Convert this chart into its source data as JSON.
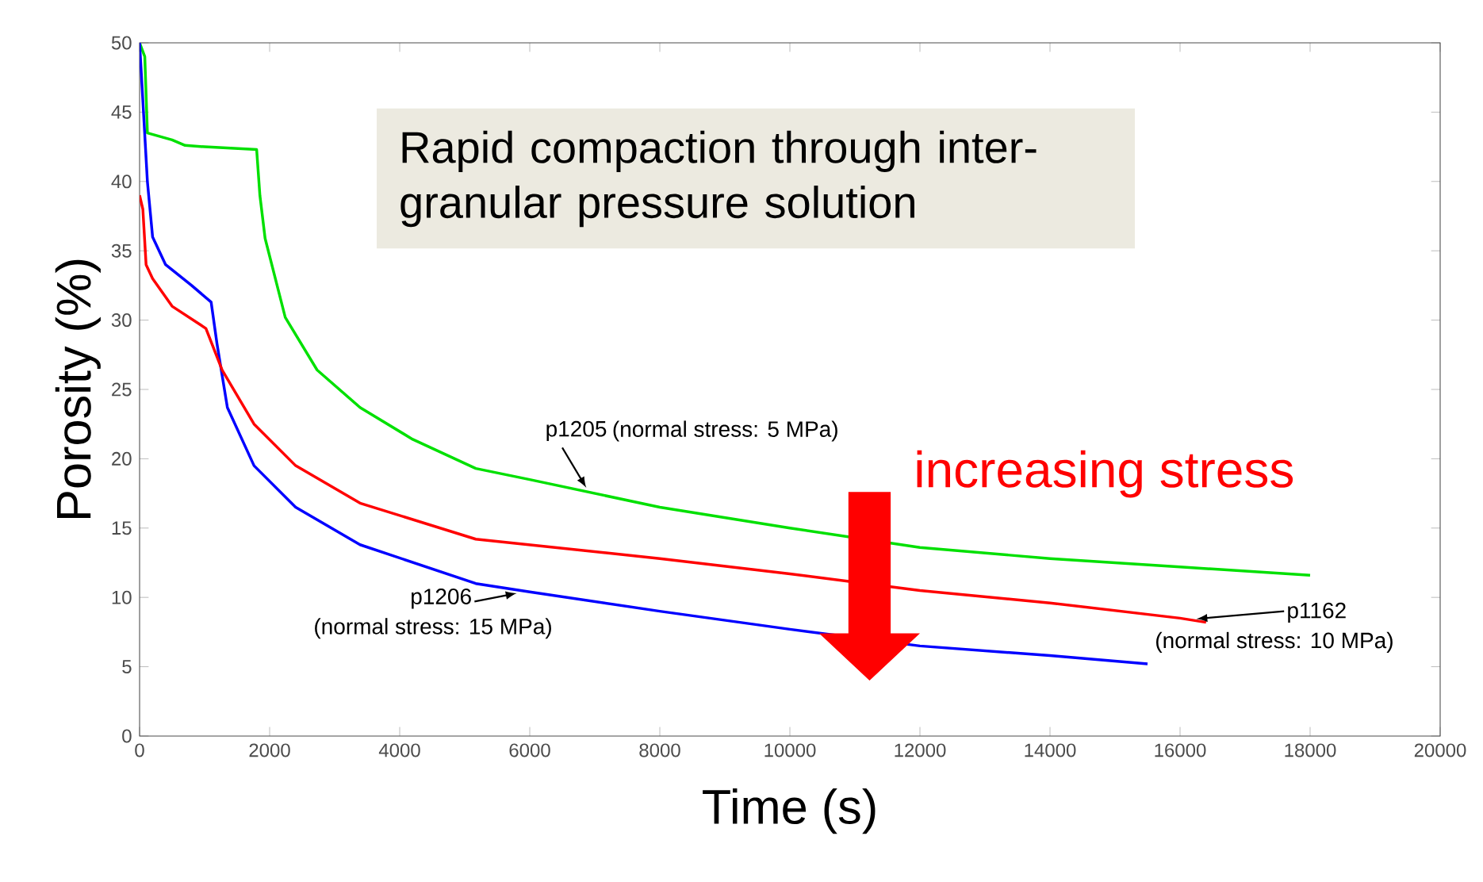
{
  "chart_data": {
    "type": "line",
    "xlabel": "Time (s)",
    "ylabel": "Porosity (%)",
    "xlim": [
      0,
      20000
    ],
    "ylim": [
      0,
      50
    ],
    "xticks": [
      0,
      2000,
      4000,
      6000,
      8000,
      10000,
      12000,
      14000,
      16000,
      18000,
      20000
    ],
    "yticks": [
      0,
      5,
      10,
      15,
      20,
      25,
      30,
      35,
      40,
      45,
      50
    ],
    "marker": "none",
    "line_style": "solid",
    "series": [
      {
        "name": "p1205",
        "color": "#00e000",
        "x": [
          0,
          80,
          120,
          500,
          700,
          1000,
          1800,
          1850,
          1930,
          2240,
          2730,
          3390,
          4200,
          5170,
          6000,
          8000,
          10000,
          12000,
          14000,
          16000,
          18000
        ],
        "values": [
          50,
          49,
          43.5,
          43,
          42.6,
          42.5,
          42.3,
          39,
          35.9,
          30.2,
          26.4,
          23.7,
          21.4,
          19.3,
          18.5,
          16.5,
          15,
          13.6,
          12.8,
          12.2,
          11.6
        ]
      },
      {
        "name": "p1206",
        "color": "#0000ff",
        "x": [
          0,
          60,
          120,
          200,
          400,
          800,
          1100,
          1190,
          1350,
          1760,
          2400,
          3390,
          5170,
          6000,
          8000,
          10000,
          12000,
          14000,
          15500
        ],
        "values": [
          50,
          45,
          40,
          36,
          34,
          32.5,
          31.3,
          28.3,
          23.7,
          19.5,
          16.5,
          13.8,
          11,
          10.4,
          9,
          7.7,
          6.5,
          5.8,
          5.2
        ]
      },
      {
        "name": "p1162",
        "color": "#ff0000",
        "x": [
          0,
          50,
          100,
          200,
          500,
          1020,
          1270,
          1760,
          2400,
          3390,
          5170,
          8000,
          10000,
          12000,
          14000,
          16000,
          16400
        ],
        "values": [
          39,
          38,
          34,
          33,
          31,
          29.4,
          26.4,
          22.5,
          19.5,
          16.8,
          14.2,
          12.8,
          11.7,
          10.5,
          9.6,
          8.5,
          8.2
        ]
      }
    ],
    "annotations": [
      "Rapid compaction through inter-granular pressure solution",
      "increasing stress",
      "(normal stress: 5 MPa)",
      "(normal stress: 15 MPa)",
      "(normal stress: 10 MPa)"
    ]
  }
}
